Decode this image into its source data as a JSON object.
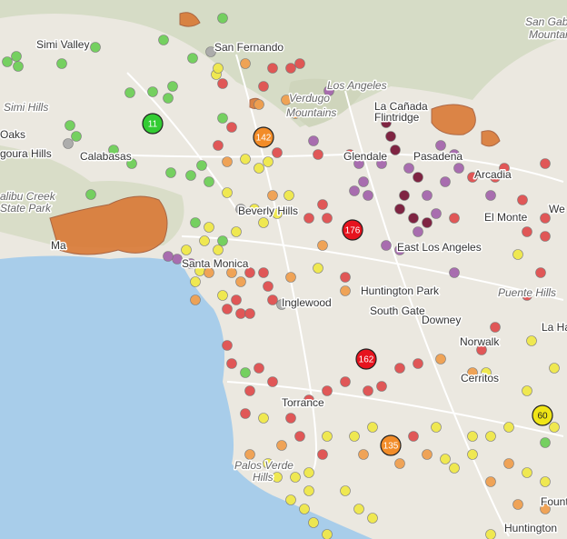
{
  "map": {
    "places": [
      {
        "label": "Simi Valley"
      },
      {
        "label": "San Fernando"
      },
      {
        "label": "Los Angeles"
      },
      {
        "label": "Verdugo"
      },
      {
        "label": "Mountains"
      },
      {
        "label": "Simi Hills"
      },
      {
        "label": "Oaks"
      },
      {
        "label": "goura Hills"
      },
      {
        "label": "Calabasas"
      },
      {
        "label": "alibu Creek"
      },
      {
        "label": "State Park"
      },
      {
        "label": "Glendale"
      },
      {
        "label": "Pasadena"
      },
      {
        "label": "La Cañada"
      },
      {
        "label": "Flintridge"
      },
      {
        "label": "Arcadia"
      },
      {
        "label": "Beverly Hills"
      },
      {
        "label": "El Monte"
      },
      {
        "label": "We"
      },
      {
        "label": "East Los Angeles"
      },
      {
        "label": "Santa Monica"
      },
      {
        "label": "Inglewood"
      },
      {
        "label": "Huntington Park"
      },
      {
        "label": "South Gate"
      },
      {
        "label": "Downey"
      },
      {
        "label": "Norwalk"
      },
      {
        "label": "Puente Hills"
      },
      {
        "label": "La Hab"
      },
      {
        "label": "Cerritos"
      },
      {
        "label": "Torrance"
      },
      {
        "label": "Palos Verde"
      },
      {
        "label": "Hills"
      },
      {
        "label": "Huntington"
      },
      {
        "label": "Fount"
      },
      {
        "label": "San Gab"
      },
      {
        "label": "Mountai"
      },
      {
        "label": "Ma"
      }
    ],
    "aqi_markers": [
      11,
      142,
      176,
      162,
      135,
      60
    ]
  }
}
